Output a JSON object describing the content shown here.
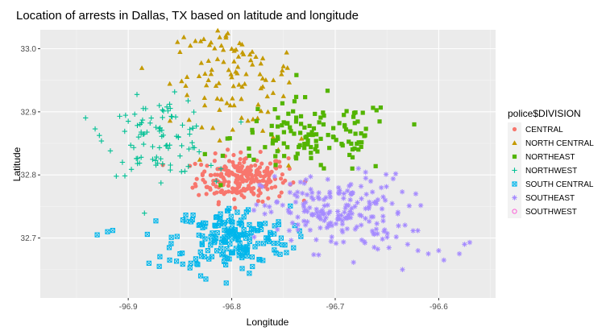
{
  "chart_data": {
    "type": "scatter",
    "title": "Location of arrests in Dallas, TX based on latitude and longitude",
    "xlabel": "Longitude",
    "ylabel": "Latitude",
    "xlim": [
      -96.985,
      -96.545
    ],
    "ylim": [
      32.605,
      33.03
    ],
    "xticks": [
      -96.9,
      -96.8,
      -96.7,
      -96.6
    ],
    "xtick_labels": [
      "-96.9",
      "-96.8",
      "-96.7",
      "-96.6"
    ],
    "yticks": [
      32.7,
      32.8,
      32.9,
      33.0
    ],
    "ytick_labels": [
      "32.7",
      "32.8",
      "32.9",
      "33.0"
    ],
    "grid": true,
    "legend_position": "right",
    "legend_title": "police$DIVISION",
    "background_color": "#ebebeb",
    "series": [
      {
        "name": "CENTRAL",
        "color": "#f8766d",
        "shape": "circle",
        "center": [
          -96.79,
          32.795
        ],
        "spread": [
          0.022,
          0.018
        ],
        "count": 240
      },
      {
        "name": "NORTH CENTRAL",
        "color": "#c49a00",
        "shape": "triangle",
        "points": [
          [
            -96.85,
            32.995
          ],
          [
            -96.84,
            33.005
          ],
          [
            -96.83,
            33.012
          ],
          [
            -96.82,
            33.01
          ],
          [
            -96.81,
            33.005
          ],
          [
            -96.8,
            33.0
          ],
          [
            -96.79,
            33.007
          ],
          [
            -96.78,
            32.975
          ],
          [
            -96.77,
            32.985
          ],
          [
            -96.82,
            32.96
          ],
          [
            -96.8,
            32.955
          ],
          [
            -96.79,
            32.94
          ],
          [
            -96.81,
            32.92
          ],
          [
            -96.77,
            32.94
          ],
          [
            -96.76,
            32.93
          ],
          [
            -96.75,
            32.925
          ],
          [
            -96.765,
            32.9
          ],
          [
            -96.775,
            32.89
          ],
          [
            -96.77,
            32.87
          ],
          [
            -96.76,
            32.86
          ],
          [
            -96.755,
            32.84
          ],
          [
            -96.745,
            32.815
          ]
        ],
        "center": [
          -96.8,
          32.96
        ],
        "spread": [
          0.03,
          0.04
        ],
        "count": 90
      },
      {
        "name": "NORTHEAST",
        "color": "#53b400",
        "shape": "square",
        "center": [
          -96.72,
          32.86
        ],
        "spread": [
          0.04,
          0.03
        ],
        "count": 130
      },
      {
        "name": "NORTHWEST",
        "color": "#00c094",
        "shape": "plus",
        "points": [
          [
            -96.932,
            32.873
          ],
          [
            -96.87,
            32.91
          ],
          [
            -96.86,
            32.912
          ],
          [
            -96.9,
            32.885
          ],
          [
            -96.89,
            32.86
          ],
          [
            -96.85,
            32.83
          ],
          [
            -96.82,
            32.815
          ],
          [
            -96.815,
            32.79
          ]
        ],
        "center": [
          -96.87,
          32.86
        ],
        "spread": [
          0.025,
          0.03
        ],
        "count": 90
      },
      {
        "name": "SOUTH CENTRAL",
        "color": "#00b6eb",
        "shape": "boxx",
        "points": [
          [
            -96.93,
            32.705
          ],
          [
            -96.92,
            32.71
          ],
          [
            -96.915,
            32.712
          ],
          [
            -96.88,
            32.66
          ],
          [
            -96.87,
            32.655
          ],
          [
            -96.86,
            32.665
          ],
          [
            -96.85,
            32.675
          ],
          [
            -96.83,
            32.64
          ],
          [
            -96.825,
            32.635
          ]
        ],
        "center": [
          -96.8,
          32.7
        ],
        "spread": [
          0.028,
          0.025
        ],
        "count": 190
      },
      {
        "name": "SOUTHEAST",
        "color": "#a58aff",
        "shape": "star",
        "points": [
          [
            -96.63,
            32.69
          ],
          [
            -96.62,
            32.68
          ],
          [
            -96.6,
            32.68
          ],
          [
            -96.595,
            32.665
          ],
          [
            -96.58,
            32.675
          ],
          [
            -96.575,
            32.69
          ],
          [
            -96.57,
            32.693
          ],
          [
            -96.61,
            32.675
          ],
          [
            -96.635,
            32.65
          ]
        ],
        "center": [
          -96.7,
          32.74
        ],
        "spread": [
          0.035,
          0.03
        ],
        "count": 200
      },
      {
        "name": "SOUTHWEST",
        "color": "#fb61d7",
        "shape": "circle-hollow",
        "center": [
          -96.85,
          32.7
        ],
        "spread": [
          0,
          0
        ],
        "count": 0
      }
    ]
  }
}
